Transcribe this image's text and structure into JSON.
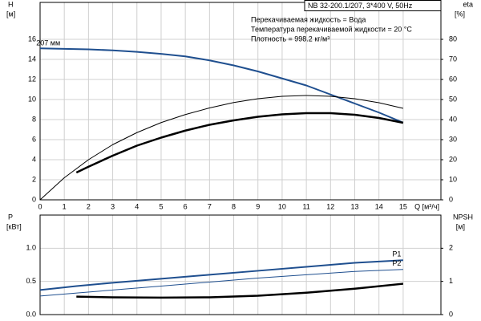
{
  "chart_data": [
    {
      "type": "line",
      "title": "NB 32-200.1/207, 3*400 V, 50Hz",
      "annotations": [
        "Перекачиваемая жидкость = Вода",
        "Температура перекачиваемой жидкости = 20 °C",
        "Плотность = 998.2 кг/м³"
      ],
      "xlabel": "Q [м³/ч]",
      "ylabel": "H",
      "yunit": "[м]",
      "y2label": "eta",
      "y2unit": "[%]",
      "xlim": [
        0,
        16.56
      ],
      "xticks": [
        0,
        1,
        2,
        3,
        4,
        5,
        6,
        7,
        8,
        9,
        10,
        11,
        12,
        13,
        14,
        15
      ],
      "ylim": [
        0,
        19.68
      ],
      "yticks": [
        0,
        2,
        4,
        6,
        8,
        10,
        12,
        14,
        16
      ],
      "y2lim": [
        0,
        98.4
      ],
      "y2ticks": [
        0,
        10,
        20,
        30,
        40,
        50,
        60,
        70,
        80
      ],
      "grid": true,
      "series": [
        {
          "name": "207 мм",
          "color": "#1f4f8f",
          "line_width": 2,
          "x": [
            0,
            1,
            2,
            3,
            4,
            5,
            6,
            7,
            8,
            9,
            10,
            11,
            12,
            13,
            14,
            15
          ],
          "values": [
            15.1,
            15.05,
            15.0,
            14.9,
            14.75,
            14.55,
            14.3,
            13.9,
            13.4,
            12.8,
            12.1,
            11.4,
            10.5,
            9.6,
            8.7,
            7.7
          ]
        },
        {
          "color": "#000000",
          "line_width": 1,
          "axis": "y2",
          "x": [
            0,
            1,
            2,
            3,
            4,
            5,
            6,
            7,
            8,
            9,
            10,
            11,
            12,
            13,
            14,
            15
          ],
          "values": [
            0,
            11,
            20,
            27.5,
            33.5,
            38.5,
            42.5,
            45.8,
            48.5,
            50.4,
            51.6,
            52,
            51.6,
            50.4,
            48.4,
            45.6
          ]
        },
        {
          "color": "#000000",
          "line_width": 2.5,
          "axis": "y2",
          "x": [
            1.5,
            2,
            3,
            4,
            5,
            6,
            7,
            8,
            9,
            10,
            11,
            12,
            13,
            14,
            15
          ],
          "values": [
            13.6,
            16.5,
            22,
            27,
            31,
            34.5,
            37.4,
            39.6,
            41.4,
            42.6,
            43.2,
            43.2,
            42.4,
            40.8,
            38.4
          ]
        }
      ]
    },
    {
      "type": "line",
      "ylabel": "P",
      "yunit": "[кВт]",
      "y2label": "NPSH",
      "y2unit": "[м]",
      "xlim": [
        0,
        16.56
      ],
      "xticks": [
        0,
        1,
        2,
        3,
        4,
        5,
        6,
        7,
        8,
        9,
        10,
        11,
        12,
        13,
        14,
        15
      ],
      "xtick_labels": false,
      "ylim": [
        0,
        1.5
      ],
      "yticks": [
        {
          "value": 0,
          "label": "0.0"
        },
        0.5,
        {
          "value": 1,
          "label": "1.0"
        }
      ],
      "y2lim": [
        0,
        3
      ],
      "y2ticks": [
        0,
        1,
        2
      ],
      "grid": true,
      "series": [
        {
          "name": "P1",
          "color": "#1f4f8f",
          "line_width": 2,
          "x": [
            0,
            1.5,
            3,
            5,
            7,
            9,
            11,
            13,
            15
          ],
          "values": [
            0.37,
            0.43,
            0.48,
            0.54,
            0.6,
            0.66,
            0.72,
            0.78,
            0.82
          ]
        },
        {
          "name": "P2",
          "color": "#1f4f8f",
          "line_width": 1,
          "x": [
            0,
            3,
            5,
            7,
            9,
            11,
            13,
            15
          ],
          "values": [
            0.28,
            0.37,
            0.43,
            0.49,
            0.55,
            0.6,
            0.65,
            0.68
          ]
        },
        {
          "color": "#000000",
          "line_width": 2.5,
          "axis": "y2",
          "x": [
            1.5,
            3,
            5,
            7,
            9,
            11,
            13,
            15
          ],
          "values": [
            0.54,
            0.52,
            0.51,
            0.52,
            0.57,
            0.66,
            0.78,
            0.93
          ]
        }
      ]
    }
  ]
}
